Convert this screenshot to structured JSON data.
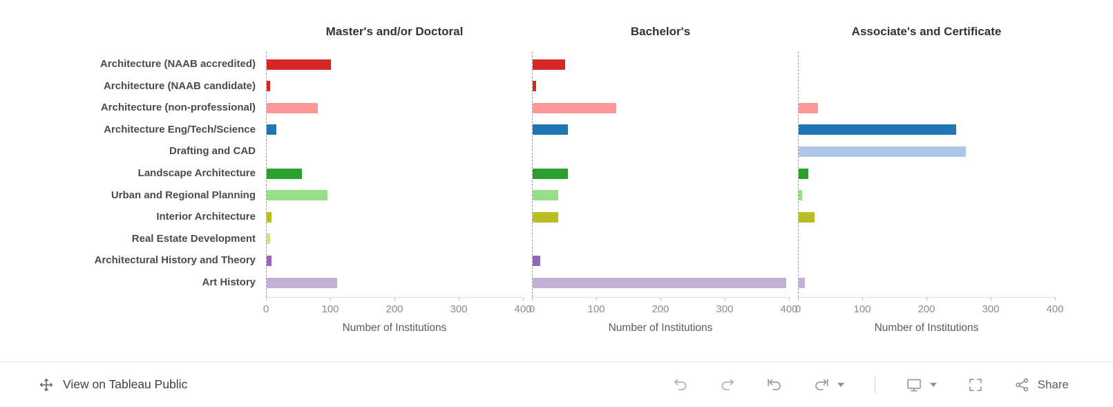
{
  "chart_data": {
    "type": "bar",
    "orientation": "horizontal",
    "xlabel": "Number of Institutions",
    "xlim": [
      0,
      400
    ],
    "xticks": [
      0,
      100,
      200,
      300,
      400
    ],
    "grid": false,
    "categories": [
      "Architecture (NAAB accredited)",
      "Architecture (NAAB candidate)",
      "Architecture (non-professional)",
      "Architecture Eng/Tech/Science",
      "Drafting and CAD",
      "Landscape Architecture",
      "Urban and Regional Planning",
      "Interior Architecture",
      "Real Estate Development",
      "Architectural History and Theory",
      "Art History"
    ],
    "colors": [
      "#d62728",
      "#d62728",
      "#ff9896",
      "#1f77b4",
      "#aec7e8",
      "#2ca02c",
      "#98df8a",
      "#bcbd22",
      "#dbdb8d",
      "#9467bd",
      "#c5b0d5"
    ],
    "panels": [
      {
        "title": "Master's and/or Doctoral",
        "values": [
          100,
          5,
          80,
          15,
          0,
          55,
          95,
          8,
          5,
          8,
          110
        ]
      },
      {
        "title": "Bachelor's",
        "values": [
          50,
          5,
          130,
          55,
          0,
          55,
          40,
          40,
          0,
          12,
          395
        ]
      },
      {
        "title": "Associate's and Certificate",
        "values": [
          0,
          0,
          30,
          245,
          260,
          15,
          5,
          25,
          0,
          0,
          10
        ]
      }
    ]
  },
  "footer": {
    "view_label": "View on Tableau Public",
    "share_label": "Share",
    "icons": [
      "move-icon",
      "undo-icon",
      "redo-icon",
      "revert-icon",
      "refresh-icon",
      "caret-down-icon",
      "display-options-icon",
      "fullscreen-icon",
      "share-icon"
    ]
  }
}
